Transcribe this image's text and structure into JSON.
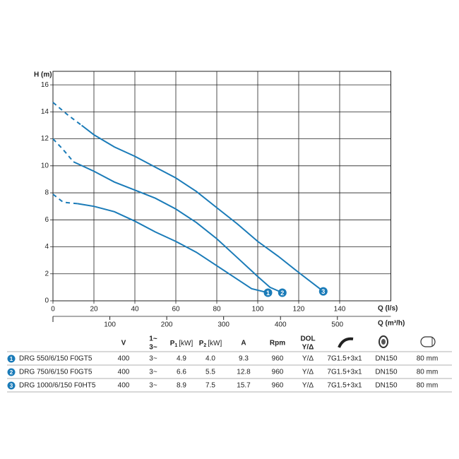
{
  "chart_data": {
    "type": "line",
    "ylabel": "H (m)",
    "xlabel": "Q (l/s)",
    "x2label": "Q (m³/h)",
    "xlim": [
      0,
      165
    ],
    "xticks": [
      0,
      20,
      40,
      60,
      80,
      100,
      120,
      140
    ],
    "x2lim": [
      0,
      594
    ],
    "x2ticks": [
      100,
      200,
      300,
      400,
      500
    ],
    "ylim": [
      0,
      17
    ],
    "yticks": [
      0,
      2,
      4,
      6,
      8,
      10,
      12,
      14,
      16
    ],
    "grid": true,
    "series": [
      {
        "name": "1",
        "color": "#1a7bb8",
        "dashed_x": [
          0,
          5,
          12
        ],
        "dashed_values": [
          7.9,
          7.3,
          7.2
        ],
        "x": [
          12,
          20,
          30,
          40,
          50,
          60,
          70,
          80,
          90,
          97,
          105
        ],
        "values": [
          7.2,
          7.0,
          6.6,
          5.9,
          5.1,
          4.4,
          3.6,
          2.6,
          1.6,
          0.9,
          0.6
        ]
      },
      {
        "name": "2",
        "color": "#1a7bb8",
        "dashed_x": [
          0,
          5,
          10
        ],
        "dashed_values": [
          12.0,
          11.2,
          10.3
        ],
        "x": [
          10,
          20,
          30,
          40,
          50,
          60,
          70,
          80,
          90,
          100,
          106,
          112
        ],
        "values": [
          10.3,
          9.6,
          8.8,
          8.2,
          7.6,
          6.8,
          5.8,
          4.6,
          3.2,
          1.8,
          1.0,
          0.6
        ]
      },
      {
        "name": "3",
        "color": "#1a7bb8",
        "dashed_x": [
          0,
          7,
          14
        ],
        "dashed_values": [
          14.7,
          13.8,
          13.0
        ],
        "x": [
          14,
          20,
          30,
          40,
          50,
          60,
          70,
          80,
          90,
          100,
          110,
          120,
          132
        ],
        "values": [
          13.0,
          12.3,
          11.4,
          10.7,
          9.9,
          9.1,
          8.1,
          6.9,
          5.7,
          4.4,
          3.3,
          2.1,
          0.7
        ]
      }
    ]
  },
  "table": {
    "headers": {
      "v": "V",
      "phase": [
        "1~",
        "3~"
      ],
      "p1": {
        "symbol": "P",
        "sub": "1",
        "unit": "[kW]"
      },
      "p2": {
        "symbol": "P",
        "sub": "2",
        "unit": "[kW]"
      },
      "a": "A",
      "rpm": "Rpm",
      "dol": [
        "DOL",
        "Y/Δ"
      ]
    },
    "rows": [
      {
        "number": "1",
        "cells": [
          "DRG 550/6/150 F0GT5",
          "400",
          "3~",
          "4.9",
          "4.0",
          "9.3",
          "960",
          "Y/Δ",
          "7G1.5+3x1",
          "DN150",
          "80 mm"
        ]
      },
      {
        "number": "2",
        "cells": [
          "DRG 750/6/150 F0GT5",
          "400",
          "3~",
          "6.6",
          "5.5",
          "12.8",
          "960",
          "Y/Δ",
          "7G1.5+3x1",
          "DN150",
          "80 mm"
        ]
      },
      {
        "number": "3",
        "cells": [
          "DRG 1000/6/150 F0HT5",
          "400",
          "3~",
          "8.9",
          "7.5",
          "15.7",
          "960",
          "Y/Δ",
          "7G1.5+3x1",
          "DN150",
          "80 mm"
        ]
      }
    ]
  }
}
